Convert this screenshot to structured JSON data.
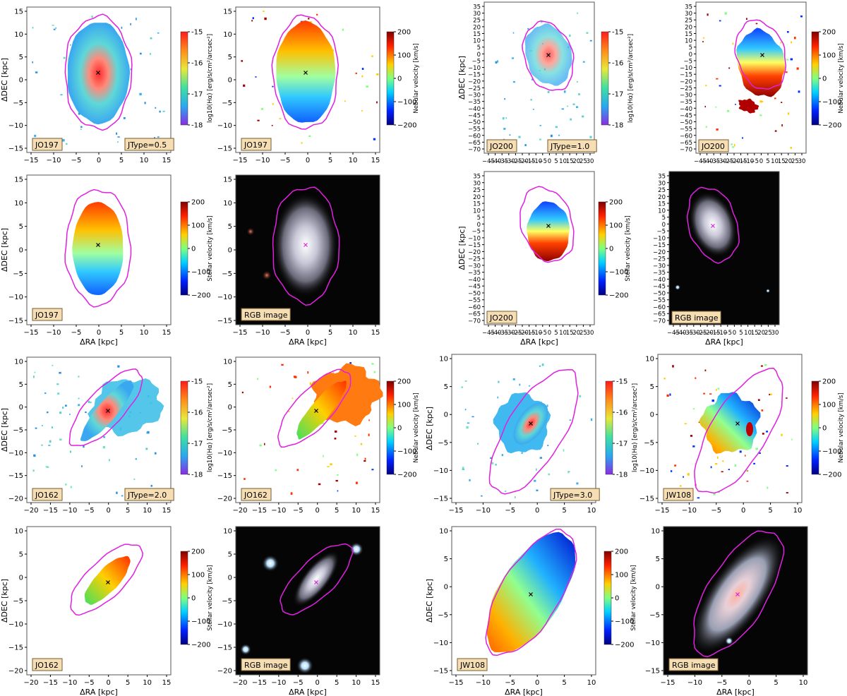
{
  "figure": {
    "labels": {
      "dra": "ΔRA [kpc]",
      "ddec": "ΔDEC [kpc]",
      "ha": "log10(Hα) [erg/s/cm²/arcsec²]",
      "neb": "Nebular velocity [km/s]",
      "stel": "Stellar velocity [km/s]",
      "rgb": "RGB image"
    },
    "colors": {
      "contour": "#e020e0",
      "tag_face": "#f5deb3",
      "tag_edge": "#7a5c2e",
      "sky": "#050505"
    },
    "colorbar_ticks": {
      "ha": [
        "-15",
        "-16",
        "-17",
        "-18"
      ],
      "vel": [
        "200",
        "100",
        "0",
        "−100",
        "−200"
      ]
    },
    "galaxies": [
      {
        "name": "JO197",
        "jtype": "JType=0.5",
        "x_ticks": [
          "−15",
          "−10",
          "−5",
          "0",
          "5",
          "10",
          "15"
        ],
        "y_ticks": [
          "15",
          "10",
          "5",
          "0",
          "−5",
          "−10",
          "−15"
        ]
      },
      {
        "name": "JO200",
        "jtype": "JType=1.0",
        "x_ticks": [
          "−45",
          "−40",
          "−35",
          "−30",
          "−25",
          "−20",
          "−15",
          "−10",
          "−5",
          "0",
          "5",
          "10",
          "15",
          "20",
          "25",
          "30"
        ],
        "y_ticks": [
          "35",
          "30",
          "25",
          "20",
          "15",
          "10",
          "5",
          "0",
          "−5",
          "−10",
          "−15",
          "−20",
          "−25",
          "−30",
          "−35",
          "−40",
          "−45",
          "−50",
          "−55",
          "−60",
          "−65",
          "−70"
        ]
      },
      {
        "name": "JO162",
        "jtype": "JType=2.0",
        "x_ticks": [
          "−20",
          "−15",
          "−10",
          "−5",
          "0",
          "5",
          "10",
          "15"
        ],
        "y_ticks": [
          "10",
          "5",
          "0",
          "−5",
          "−10",
          "−15",
          "−20"
        ]
      },
      {
        "name": "JW108",
        "jtype": "JType=3.0",
        "x_ticks": [
          "−15",
          "−10",
          "−5",
          "0",
          "5",
          "10"
        ],
        "y_ticks": [
          "10",
          "5",
          "0",
          "−5",
          "−10",
          "−15"
        ]
      }
    ]
  }
}
